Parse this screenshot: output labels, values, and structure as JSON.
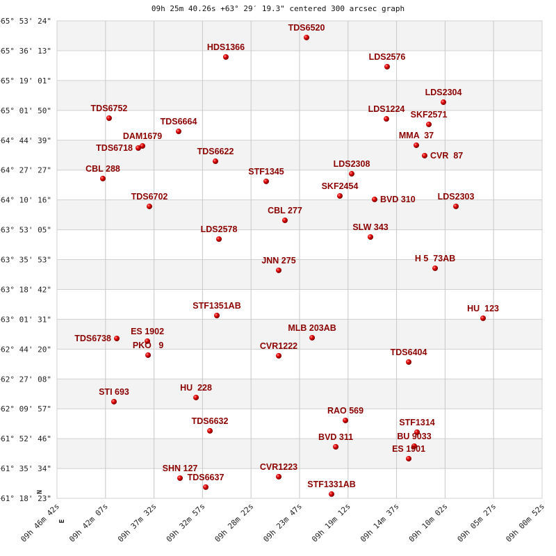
{
  "title": "09h 25m 40.26s +63° 29′ 19.3\" centered 300 arcsec graph",
  "chart_data": {
    "type": "scatter",
    "title": "09h 25m 40.26s +63° 29′ 19.3\" centered 300 arcsec graph",
    "xlabel": "",
    "ylabel": "",
    "x_units": "RA (hours), increasing to the left",
    "y_units": "Dec (degrees)",
    "xlim": [
      9.77833,
      9.01444
    ],
    "ylim": [
      61.30639,
      65.89
    ],
    "grid": true,
    "alternating_row_bands": true,
    "orientation_markers": {
      "north": "N",
      "east": "E"
    },
    "marker_color": "#e00000",
    "label_color": "#8b0000",
    "x_tick_values": [
      9.77833,
      9.70194,
      9.62556,
      9.54917,
      9.47278,
      9.39639,
      9.32,
      9.24361,
      9.16722,
      9.09083,
      9.01444
    ],
    "x_tick_labels": [
      "09h 46m 42s",
      "09h 42m 07s",
      "09h 37m 32s",
      "09h 32m 57s",
      "09h 28m 22s",
      "09h 23m 47s",
      "09h 19m 12s",
      "09h 14m 37s",
      "09h 10m 02s",
      "09h 05m 27s",
      "09h 00m 52s"
    ],
    "y_tick_labels": [
      "+65° 53' 24\"",
      "+65° 36' 13\"",
      "+65° 19' 01\"",
      "+65° 01' 50\"",
      "+64° 44' 39\"",
      "+64° 27' 27\"",
      "+64° 10' 16\"",
      "+63° 53' 05\"",
      "+63° 35' 53\"",
      "+63° 18' 42\"",
      "+63° 01' 31\"",
      "+62° 44' 20\"",
      "+62° 27' 08\"",
      "+62° 09' 57\"",
      "+61° 52' 46\"",
      "+61° 35' 34\"",
      "+61° 18' 23\""
    ],
    "points": [
      {
        "name": "TDS6520",
        "ra": 9.3854,
        "dec": 65.73
      },
      {
        "name": "HDS1366",
        "ra": 9.5124,
        "dec": 65.543
      },
      {
        "name": "LDS2576",
        "ra": 9.2585,
        "dec": 65.45
      },
      {
        "name": "LDS2304",
        "ra": 9.1698,
        "dec": 65.109
      },
      {
        "name": "TDS6752",
        "ra": 9.6963,
        "dec": 64.956
      },
      {
        "name": "LDS1224",
        "ra": 9.2596,
        "dec": 64.949
      },
      {
        "name": "SKF2571",
        "ra": 9.1928,
        "dec": 64.896
      },
      {
        "name": "TDS6664",
        "ra": 9.5868,
        "dec": 64.829
      },
      {
        "name": "DAM1679",
        "ra": 9.6437,
        "dec": 64.689
      },
      {
        "name": "TDS6718",
        "ra": 9.6503,
        "dec": 64.669
      },
      {
        "name": "MMA  37",
        "ra": 9.2125,
        "dec": 64.696
      },
      {
        "name": "CVR  87",
        "ra": 9.1994,
        "dec": 64.596
      },
      {
        "name": "TDS6622",
        "ra": 9.5288,
        "dec": 64.542
      },
      {
        "name": "CBL 288",
        "ra": 9.7061,
        "dec": 64.376
      },
      {
        "name": "LDS2308",
        "ra": 9.3143,
        "dec": 64.422
      },
      {
        "name": "STF1345",
        "ra": 9.4489,
        "dec": 64.349
      },
      {
        "name": "SKF2454",
        "ra": 9.3329,
        "dec": 64.209
      },
      {
        "name": "BVD 310",
        "ra": 9.2782,
        "dec": 64.176
      },
      {
        "name": "TDS6702",
        "ra": 9.6328,
        "dec": 64.109
      },
      {
        "name": "LDS2303",
        "ra": 9.1501,
        "dec": 64.109
      },
      {
        "name": "CBL 277",
        "ra": 9.4194,
        "dec": 63.975
      },
      {
        "name": "LDS2578",
        "ra": 9.5233,
        "dec": 63.795
      },
      {
        "name": "SLW 343",
        "ra": 9.2847,
        "dec": 63.815
      },
      {
        "name": "JNN 275",
        "ra": 9.4292,
        "dec": 63.495
      },
      {
        "name": "H 5  73AB",
        "ra": 9.1829,
        "dec": 63.515
      },
      {
        "name": "STF1351AB",
        "ra": 9.5266,
        "dec": 63.061
      },
      {
        "name": "HU  123",
        "ra": 9.1074,
        "dec": 63.035
      },
      {
        "name": "TDS6738",
        "ra": 9.6842,
        "dec": 62.841
      },
      {
        "name": "ES 1902",
        "ra": 9.636,
        "dec": 62.815
      },
      {
        "name": "MLB 203AB",
        "ra": 9.3766,
        "dec": 62.848
      },
      {
        "name": "CVR1222",
        "ra": 9.4292,
        "dec": 62.675
      },
      {
        "name": "PKO   9",
        "ra": 9.6349,
        "dec": 62.681
      },
      {
        "name": "TDS6404",
        "ra": 9.2245,
        "dec": 62.615
      },
      {
        "name": "STI 693",
        "ra": 9.6886,
        "dec": 62.234
      },
      {
        "name": "HU  228",
        "ra": 9.5594,
        "dec": 62.274
      },
      {
        "name": "RAO 569",
        "ra": 9.3241,
        "dec": 62.054
      },
      {
        "name": "STF1314",
        "ra": 9.2114,
        "dec": 61.941
      },
      {
        "name": "TDS6632",
        "ra": 9.5375,
        "dec": 61.954
      },
      {
        "name": "BVD 311",
        "ra": 9.3394,
        "dec": 61.801
      },
      {
        "name": "BU 9033",
        "ra": 9.2158,
        "dec": 61.807
      },
      {
        "name": "ES 1901",
        "ra": 9.2245,
        "dec": 61.687
      },
      {
        "name": "SHN 127",
        "ra": 9.5846,
        "dec": 61.5
      },
      {
        "name": "CVR1223",
        "ra": 9.4292,
        "dec": 61.514
      },
      {
        "name": "TDS6637",
        "ra": 9.5441,
        "dec": 61.414
      },
      {
        "name": "STF1331AB",
        "ra": 9.346,
        "dec": 61.347
      }
    ]
  }
}
